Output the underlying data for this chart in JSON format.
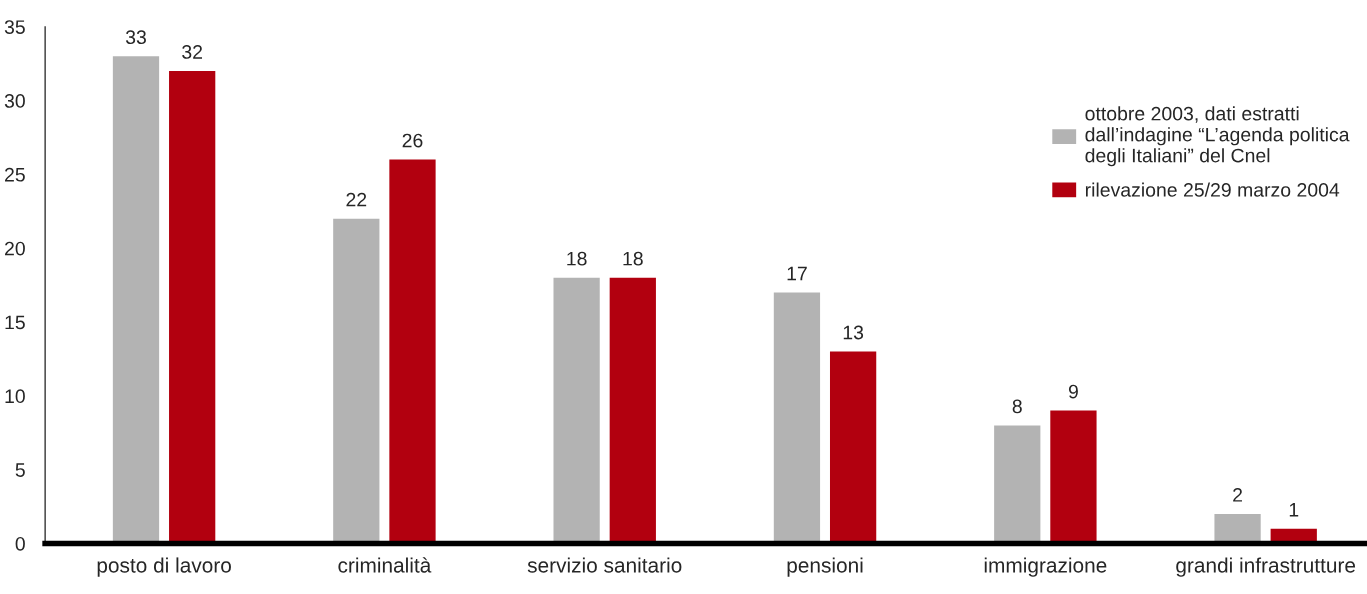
{
  "chart_data": {
    "type": "bar",
    "categories": [
      "posto di lavoro",
      "criminalità",
      "servizio sanitario",
      "pensioni",
      "immigrazione",
      "grandi infrastrutture"
    ],
    "series": [
      {
        "name": "ottobre 2003, dati estratti\ndall’indagine “L’agenda politica\ndegli Italiani” del Cnel",
        "color": "#b3b3b3",
        "values": [
          33,
          22,
          18,
          17,
          8,
          2
        ]
      },
      {
        "name": "rilevazione 25/29 marzo 2004",
        "color": "#b2000f",
        "values": [
          32,
          26,
          18,
          13,
          9,
          1
        ]
      }
    ],
    "ylim": [
      0,
      35
    ],
    "yticks": [
      0,
      5,
      10,
      15,
      20,
      25,
      30,
      35
    ],
    "data_labels": true,
    "grid": false,
    "legend": "top right"
  }
}
